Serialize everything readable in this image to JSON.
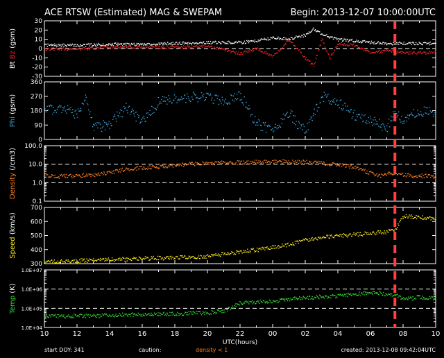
{
  "header": {
    "title": "ACE RTSW (Estimated) MAG & SWEPAM",
    "begin": "Begin: 2013-12-07 10:00:00UTC"
  },
  "footer": {
    "start_doy": "start DOY: 341",
    "caution_label": "caution:",
    "caution_note": "density < 1",
    "created": "created: 2013-12-08 09:42:04UTC"
  },
  "colors": {
    "bt": "#ffffff",
    "bz": "#ff2020",
    "phi": "#3aa6dd",
    "density": "#ff7f1e",
    "speed": "#ffee1a",
    "temp": "#35d935",
    "marker": "#ff4040",
    "frame": "#ffffff"
  },
  "chart_data": {
    "type": "scatter",
    "x_axis": {
      "label": "UTC(hours)",
      "ticks": [
        "10",
        "12",
        "14",
        "16",
        "18",
        "20",
        "22",
        "00",
        "02",
        "04",
        "06",
        "08",
        "10"
      ],
      "range_hours": [
        0,
        24
      ]
    },
    "current_time_marker_hours": 21.5,
    "panels": [
      {
        "key": "mag",
        "ylabel_parts": [
          "Bt",
          "Bz",
          "(gsm)"
        ],
        "ylim": [
          -30,
          30
        ],
        "yticks": [
          30,
          20,
          10,
          0,
          -10,
          -20,
          -30
        ],
        "dashed": [
          0
        ],
        "series": [
          {
            "name": "Bt",
            "color": "#ffffff",
            "x": [
              0,
              2,
              4,
              6,
              8,
              10,
              12,
              13,
              14,
              15,
              16,
              16.5,
              17,
              17.5,
              18,
              19,
              19.5,
              20,
              21,
              22,
              24
            ],
            "y": [
              4,
              4,
              5,
              5,
              6,
              7,
              7,
              9,
              12,
              11,
              15,
              22,
              16,
              13,
              10,
              9,
              8,
              7,
              6,
              6,
              6
            ]
          },
          {
            "name": "Bz",
            "color": "#ff2020",
            "x": [
              0,
              2,
              4,
              6,
              8,
              10,
              12,
              13,
              14,
              15,
              16,
              16.5,
              17,
              17.5,
              18,
              19,
              19.5,
              20,
              21,
              22,
              24
            ],
            "y": [
              0,
              0,
              2,
              2,
              2,
              3,
              -5,
              0,
              -8,
              10,
              -10,
              -18,
              10,
              -10,
              6,
              4,
              0,
              -4,
              -2,
              -4,
              -4
            ]
          }
        ]
      },
      {
        "key": "phi",
        "ylabel_parts": [
          "Phi",
          "(gsm)"
        ],
        "ylim": [
          0,
          360
        ],
        "yticks": [
          360,
          270,
          180,
          90,
          0
        ],
        "dashed": [],
        "series": [
          {
            "name": "Phi",
            "color": "#3aa6dd",
            "x": [
              0,
              1,
              2,
              2.5,
              3,
              4,
              5,
              6,
              7,
              8,
              9,
              10,
              11,
              12,
              13,
              14,
              15,
              15.5,
              16,
              17,
              18,
              19,
              20,
              21,
              21.5,
              22,
              23,
              24
            ],
            "y": [
              180,
              200,
              160,
              260,
              70,
              100,
              200,
              110,
              240,
              250,
              270,
              270,
              240,
              280,
              100,
              60,
              170,
              100,
              50,
              270,
              240,
              150,
              120,
              80,
              170,
              130,
              180,
              170
            ]
          }
        ]
      },
      {
        "key": "density",
        "ylabel_parts": [
          "Density",
          "(/cm3)"
        ],
        "scale": "log",
        "ylim": [
          0.1,
          100
        ],
        "yticks": [
          100.0,
          10.0,
          1.0,
          0.1
        ],
        "ytick_labels": [
          "100.0",
          "10.0",
          "1.0",
          "0.1"
        ],
        "dashed": [
          10,
          1
        ],
        "series": [
          {
            "name": "Density",
            "color": "#ff7f1e",
            "x": [
              0,
              1,
              2,
              3,
              4,
              5,
              6,
              7,
              8,
              9,
              10,
              11,
              12,
              13,
              14,
              15,
              16,
              17,
              18,
              19,
              19.5,
              20,
              20.5,
              21,
              21.5,
              22,
              23,
              24
            ],
            "y": [
              2.5,
              2.3,
              2.5,
              2.7,
              4,
              5.5,
              6.5,
              8,
              9,
              11,
              12,
              13,
              13,
              14,
              14.5,
              15,
              14,
              12,
              10,
              7,
              5,
              3.5,
              2.5,
              3,
              3.8,
              2.8,
              2.5,
              2.2
            ]
          }
        ]
      },
      {
        "key": "speed",
        "ylabel_parts": [
          "Speed",
          "(km/s)"
        ],
        "ylim": [
          300,
          700
        ],
        "yticks": [
          700,
          600,
          500,
          400,
          300
        ],
        "dashed": [],
        "series": [
          {
            "name": "Speed",
            "color": "#ffee1a",
            "x": [
              0,
              2,
              4,
              6,
              8,
              10,
              11,
              12,
              13,
              14,
              15,
              16,
              17,
              18,
              19,
              20,
              21,
              21.5,
              22,
              23,
              24
            ],
            "y": [
              315,
              325,
              330,
              340,
              345,
              355,
              370,
              390,
              400,
              420,
              440,
              470,
              490,
              500,
              510,
              520,
              530,
              550,
              640,
              635,
              620
            ]
          }
        ]
      },
      {
        "key": "temp",
        "ylabel_parts": [
          "Temp",
          "(K)"
        ],
        "scale": "log",
        "ylim": [
          10000,
          10000000
        ],
        "yticks": [
          10000000,
          1000000,
          100000,
          10000
        ],
        "ytick_labels": [
          "1.0E+07",
          "1.0E+06",
          "1.0E+05",
          "1.0E+04"
        ],
        "dashed": [
          1000000,
          100000
        ],
        "series": [
          {
            "name": "Temp",
            "color": "#35d935",
            "x": [
              0,
              2,
              4,
              6,
              8,
              10,
              11,
              12,
              13,
              14,
              15,
              16,
              17,
              18,
              19,
              20,
              21,
              21.5,
              22,
              23,
              24
            ],
            "y": [
              40000,
              42000,
              45000,
              50000,
              55000,
              60000,
              80000,
              200000,
              220000,
              250000,
              300000,
              380000,
              420000,
              480000,
              560000,
              650000,
              600000,
              500000,
              300000,
              400000,
              350000
            ]
          }
        ]
      }
    ]
  }
}
